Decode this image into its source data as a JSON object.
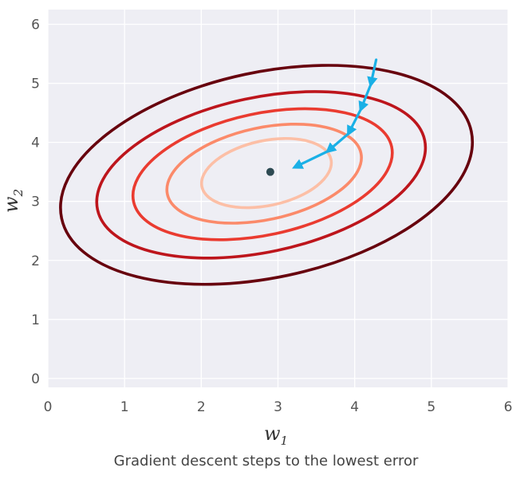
{
  "chart_data": {
    "type": "contour",
    "xlabel": "w",
    "xlabel_sub": "1",
    "ylabel": "w",
    "ylabel_sub": "2",
    "xlim": [
      0,
      6
    ],
    "ylim": [
      -0.15,
      6.25
    ],
    "xticks": [
      "0",
      "1",
      "2",
      "3",
      "4",
      "5",
      "6"
    ],
    "yticks": [
      "0",
      "1",
      "2",
      "3",
      "4",
      "5",
      "6"
    ],
    "grid": true,
    "background": "#eeeef4",
    "minimum": {
      "x": 2.9,
      "y": 3.5,
      "color": "#2d4a52"
    },
    "contours": [
      {
        "cx": 2.85,
        "cy": 3.48,
        "rx": 0.86,
        "ry": 0.55,
        "angle_deg": 12,
        "color": "#fcbfa6"
      },
      {
        "cx": 2.82,
        "cy": 3.47,
        "rx": 1.29,
        "ry": 0.78,
        "angle_deg": 12,
        "color": "#fb8a6a"
      },
      {
        "cx": 2.8,
        "cy": 3.46,
        "rx": 1.72,
        "ry": 1.03,
        "angle_deg": 12,
        "color": "#ea3b30"
      },
      {
        "cx": 2.78,
        "cy": 3.45,
        "rx": 2.18,
        "ry": 1.31,
        "angle_deg": 12,
        "color": "#bd151c"
      },
      {
        "cx": 2.85,
        "cy": 3.45,
        "rx": 2.73,
        "ry": 1.74,
        "angle_deg": 12,
        "color": "#67000d"
      }
    ],
    "descent_path": {
      "color": "#1ab0e6",
      "points": [
        {
          "x": 4.28,
          "y": 5.4
        },
        {
          "x": 4.21,
          "y": 4.98
        },
        {
          "x": 4.08,
          "y": 4.56
        },
        {
          "x": 3.92,
          "y": 4.15
        },
        {
          "x": 3.65,
          "y": 3.85
        },
        {
          "x": 3.22,
          "y": 3.58
        }
      ]
    }
  },
  "caption": "Gradient descent steps to the lowest error"
}
